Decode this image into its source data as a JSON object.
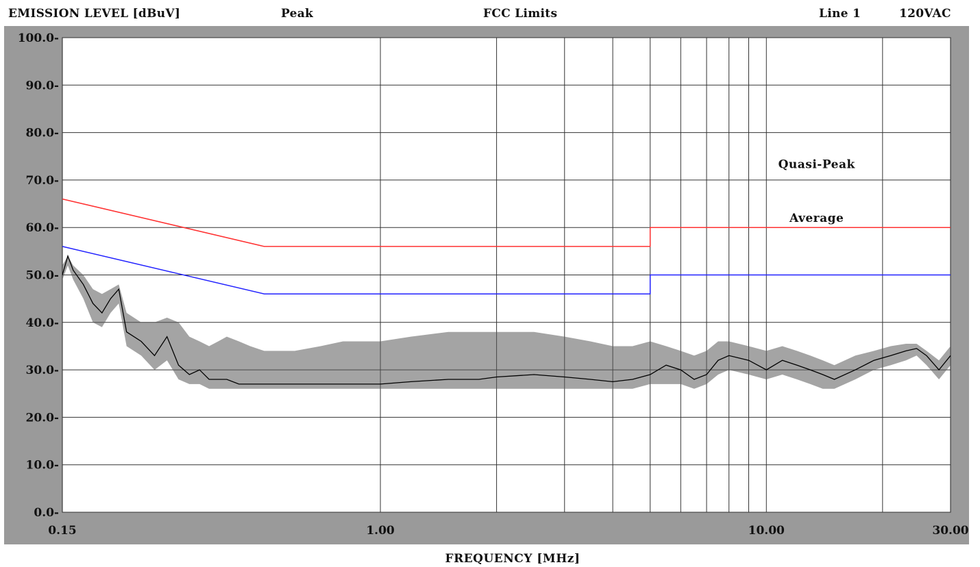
{
  "header": {
    "ylabel": "EMISSION LEVEL [dBuV]",
    "mode": "Peak",
    "title": "FCC Limits",
    "line": "Line 1",
    "voltage": "120VAC"
  },
  "chart_data": {
    "type": "line",
    "xlabel": "FREQUENCY [MHz]",
    "xscale": "log",
    "xlim": [
      0.15,
      30.0
    ],
    "ylim": [
      0.0,
      100.0
    ],
    "grid": true,
    "y_ticks": [
      "100.0",
      "90.0",
      "80.0",
      "70.0",
      "60.0",
      "50.0",
      "40.0",
      "30.0",
      "20.0",
      "10.0",
      "0.0"
    ],
    "y_tick_values": [
      100,
      90,
      80,
      70,
      60,
      50,
      40,
      30,
      20,
      10,
      0
    ],
    "x_ticks": [
      "0.15",
      "1.00",
      "10.00",
      "30.00"
    ],
    "x_tick_values": [
      0.15,
      1.0,
      10.0,
      30.0
    ],
    "x_grid_values": [
      1,
      2,
      3,
      4,
      5,
      6,
      7,
      8,
      9,
      10,
      20
    ],
    "annotations": [
      {
        "text": "Quasi-Peak",
        "x": 13.5,
        "y": 72.5
      },
      {
        "text": "Average",
        "x": 13.5,
        "y": 61.2
      }
    ],
    "series": [
      {
        "name": "Quasi-Peak",
        "color": "#ff3030",
        "x": [
          0.15,
          0.5,
          5.0,
          5.0,
          30.0
        ],
        "y": [
          66,
          56,
          56,
          60,
          60
        ]
      },
      {
        "name": "Average",
        "color": "#2020ff",
        "x": [
          0.15,
          0.5,
          5.0,
          5.0,
          30.0
        ],
        "y": [
          56,
          46,
          46,
          50,
          50
        ]
      },
      {
        "name": "Peak",
        "color": "#000000",
        "x": [
          0.15,
          0.155,
          0.16,
          0.17,
          0.18,
          0.19,
          0.2,
          0.21,
          0.22,
          0.24,
          0.26,
          0.28,
          0.3,
          0.32,
          0.34,
          0.36,
          0.38,
          0.4,
          0.43,
          0.46,
          0.5,
          0.55,
          0.6,
          0.7,
          0.8,
          0.9,
          1.0,
          1.2,
          1.5,
          1.8,
          2.0,
          2.5,
          3.0,
          3.5,
          4.0,
          4.5,
          5.0,
          5.5,
          6.0,
          6.5,
          7.0,
          7.5,
          8.0,
          9.0,
          10.0,
          11.0,
          12.0,
          13.0,
          14.0,
          15.0,
          17.0,
          19.0,
          21.0,
          23.0,
          24.5,
          26.0,
          28.0,
          30.0
        ],
        "y": [
          50,
          54,
          51,
          48,
          44,
          42,
          45,
          47,
          38,
          36,
          33,
          37,
          31,
          29,
          30,
          28,
          28,
          28,
          27,
          27,
          27,
          27,
          27,
          27,
          27,
          27,
          27,
          27.5,
          28,
          28,
          28.5,
          29,
          28.5,
          28,
          27.5,
          28,
          29,
          31,
          30,
          28,
          29,
          32,
          33,
          32,
          30,
          32,
          31,
          30,
          29,
          28,
          30,
          32,
          33,
          34,
          34.5,
          33,
          30,
          33
        ],
        "envelope_high": [
          52,
          54,
          52,
          50,
          47,
          46,
          47,
          48,
          42,
          40,
          40,
          41,
          40,
          37,
          36,
          35,
          36,
          37,
          36,
          35,
          34,
          34,
          34,
          35,
          36,
          36,
          36,
          37,
          38,
          38,
          38,
          38,
          37,
          36,
          35,
          35,
          36,
          35,
          34,
          33,
          34,
          36,
          36,
          35,
          34,
          35,
          34,
          33,
          32,
          31,
          33,
          34,
          35,
          35.5,
          35.5,
          34,
          32,
          35
        ],
        "envelope_low": [
          49,
          52,
          49,
          45,
          40,
          39,
          42,
          44,
          35,
          33,
          30,
          32,
          28,
          27,
          27,
          26,
          26,
          26,
          26,
          26,
          26,
          26,
          26,
          26,
          26,
          26,
          26,
          26,
          26,
          26,
          26,
          26,
          26,
          26,
          26,
          26,
          27,
          27,
          27,
          26,
          27,
          29,
          30,
          29,
          28,
          29,
          28,
          27,
          26,
          26,
          28,
          30,
          31,
          32,
          33,
          31,
          28,
          31
        ]
      }
    ]
  }
}
